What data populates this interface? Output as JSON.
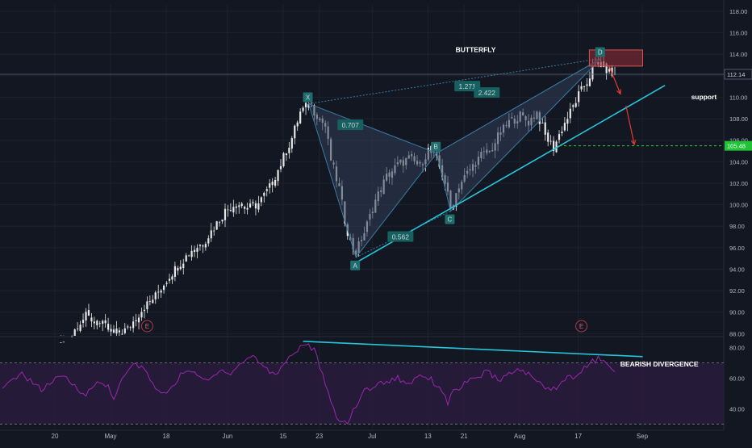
{
  "colors": {
    "background": "#131722",
    "grid": "#1e222d",
    "candle": "#e8e8e8",
    "pattern_fill": "#2f3e56",
    "pattern_stroke": "#3a7ca5",
    "point_label_bg": "#1f6e6e",
    "ratio_label_bg": "#16605f",
    "trendline": "#26c6da",
    "support_dashed": "#2ecc40",
    "arrow": "#e53935",
    "d_zone": "#8b2a35",
    "rsi_line": "#9c27b0",
    "rsi_fill": "#2a1b3d",
    "text": "#b2b5be",
    "white_text": "#ffffff"
  },
  "chart_data": [
    {
      "type": "candlestick",
      "y_axis": {
        "ticks": [
          "118.00",
          "116.00",
          "114.00",
          "112.00",
          "110.00",
          "108.00",
          "106.00",
          "104.00",
          "102.00",
          "100.00",
          "98.00",
          "96.00",
          "94.00",
          "92.00",
          "90.00",
          "88.00"
        ],
        "range": [
          87.8,
          118.6
        ]
      },
      "x_axis": {
        "ticks": [
          "20",
          "May",
          "18",
          "Jun",
          "15",
          "23",
          "Jul",
          "13",
          "21",
          "Aug",
          "17",
          "Sep"
        ]
      },
      "last_price_label": "112.14",
      "support_price_label": "105.48",
      "annotations": {
        "title": "BUTTERFLY",
        "support": "support",
        "points": [
          "X",
          "A",
          "B",
          "C",
          "D"
        ],
        "ratios": [
          "1.271",
          "0.707",
          "2.422",
          "0.562"
        ],
        "earnings": [
          "E",
          "E"
        ]
      },
      "price_path": [
        [
          0,
          86.6
        ],
        [
          8,
          87.0
        ],
        [
          14,
          86.3
        ],
        [
          20,
          86.8
        ],
        [
          24,
          87.4
        ],
        [
          27,
          88.9
        ],
        [
          30,
          89.6
        ],
        [
          33,
          89.2
        ],
        [
          37,
          88.6
        ],
        [
          40,
          88.0
        ],
        [
          45,
          88.4
        ],
        [
          50,
          90.2
        ],
        [
          55,
          91.5
        ],
        [
          60,
          93.4
        ],
        [
          64,
          94.6
        ],
        [
          68,
          95.8
        ],
        [
          72,
          96.4
        ],
        [
          76,
          97.9
        ],
        [
          80,
          99.4
        ],
        [
          84,
          100.2
        ],
        [
          88,
          99.6
        ],
        [
          92,
          100.1
        ],
        [
          96,
          101.6
        ],
        [
          100,
          103.8
        ],
        [
          104,
          106.2
        ],
        [
          107,
          108.6
        ],
        [
          110,
          109.3
        ],
        [
          113,
          108.4
        ],
        [
          116,
          107.3
        ],
        [
          118,
          104.2
        ],
        [
          121,
          101.5
        ],
        [
          123,
          98.6
        ],
        [
          125,
          96.5
        ],
        [
          127,
          95.6
        ],
        [
          130,
          97.4
        ],
        [
          134,
          100.4
        ],
        [
          138,
          102.6
        ],
        [
          142,
          103.7
        ],
        [
          146,
          104.3
        ],
        [
          150,
          103.6
        ],
        [
          153,
          105.1
        ],
        [
          156,
          104.2
        ],
        [
          159,
          102.1
        ],
        [
          161,
          99.6
        ],
        [
          164,
          101.8
        ],
        [
          168,
          103.3
        ],
        [
          172,
          104.6
        ],
        [
          175,
          104.9
        ],
        [
          178,
          106.3
        ],
        [
          182,
          107.7
        ],
        [
          186,
          108.3
        ],
        [
          189,
          107.7
        ],
        [
          192,
          108.6
        ],
        [
          195,
          106.4
        ],
        [
          198,
          105.3
        ],
        [
          201,
          107.1
        ],
        [
          204,
          108.6
        ],
        [
          207,
          110.2
        ],
        [
          210,
          111.4
        ],
        [
          212,
          112.6
        ],
        [
          214,
          113.2
        ],
        [
          216,
          112.9
        ],
        [
          218,
          112.3
        ],
        [
          220,
          112.0
        ]
      ]
    },
    {
      "type": "line",
      "name": "RSI",
      "y_axis": {
        "ticks": [
          "80.00",
          "60.00",
          "40.00"
        ],
        "range": [
          27,
          86
        ]
      },
      "overbought": 70,
      "oversold": 30,
      "annotation": "BEARISH DIVERGENCE",
      "path": [
        [
          0,
          52
        ],
        [
          6,
          63
        ],
        [
          10,
          59
        ],
        [
          14,
          52
        ],
        [
          18,
          58
        ],
        [
          22,
          61
        ],
        [
          26,
          55
        ],
        [
          30,
          49
        ],
        [
          34,
          57
        ],
        [
          38,
          55
        ],
        [
          40,
          47
        ],
        [
          44,
          62
        ],
        [
          48,
          70
        ],
        [
          52,
          63
        ],
        [
          55,
          53
        ],
        [
          58,
          49
        ],
        [
          62,
          57
        ],
        [
          66,
          66
        ],
        [
          70,
          61
        ],
        [
          74,
          58
        ],
        [
          78,
          66
        ],
        [
          82,
          63
        ],
        [
          86,
          70
        ],
        [
          90,
          75
        ],
        [
          94,
          67
        ],
        [
          98,
          62
        ],
        [
          102,
          72
        ],
        [
          106,
          78
        ],
        [
          108,
          83
        ],
        [
          110,
          81
        ],
        [
          112,
          78
        ],
        [
          114,
          68
        ],
        [
          116,
          55
        ],
        [
          118,
          44
        ],
        [
          120,
          35
        ],
        [
          122,
          31
        ],
        [
          124,
          32
        ],
        [
          126,
          38
        ],
        [
          130,
          52
        ],
        [
          134,
          55
        ],
        [
          138,
          58
        ],
        [
          142,
          60
        ],
        [
          146,
          56
        ],
        [
          150,
          63
        ],
        [
          154,
          59
        ],
        [
          158,
          52
        ],
        [
          160,
          44
        ],
        [
          162,
          51
        ],
        [
          166,
          56
        ],
        [
          170,
          60
        ],
        [
          174,
          64
        ],
        [
          178,
          59
        ],
        [
          182,
          62
        ],
        [
          186,
          66
        ],
        [
          190,
          61
        ],
        [
          194,
          55
        ],
        [
          198,
          53
        ],
        [
          202,
          59
        ],
        [
          206,
          62
        ],
        [
          210,
          68
        ],
        [
          214,
          73
        ],
        [
          216,
          70
        ],
        [
          218,
          67
        ],
        [
          220,
          66
        ]
      ]
    }
  ]
}
